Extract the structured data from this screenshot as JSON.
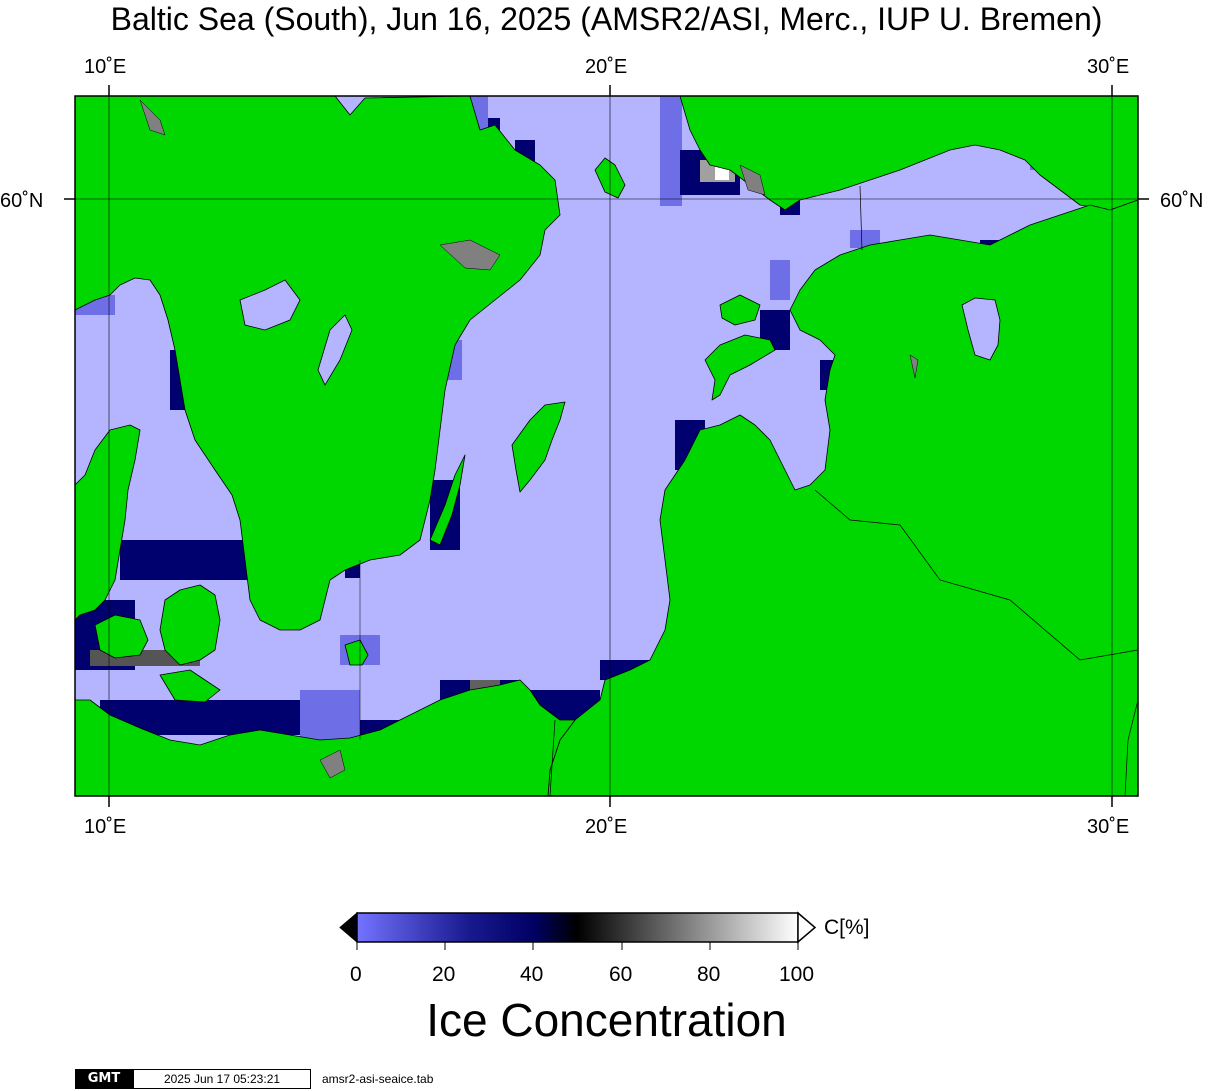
{
  "title": "Baltic Sea (South), Jun 16, 2025 (AMSR2/ASI, Merc., IUP U. Bremen)",
  "lon_labels": [
    "10˚E",
    "20˚E",
    "30˚E"
  ],
  "lat_labels": [
    "60˚N"
  ],
  "colorbar": {
    "unit": "C[%]",
    "ticks": [
      "0",
      "20",
      "40",
      "60",
      "80",
      "100"
    ],
    "title": "Ice Concentration",
    "stops": [
      "#7373ff",
      "#000064",
      "#000000",
      "#ffffff"
    ]
  },
  "colors": {
    "land": "#00d700",
    "water": "#b4b4ff",
    "coast": "#000000",
    "low_conc": "#6e6ee6",
    "mid_conc": "#00006e",
    "grey_pixel": "#808080"
  },
  "footer": {
    "logo": "GMT",
    "timestamp": "2025 Jun 17 05:23:21",
    "command": "amsr2-asi-seaice.tab"
  }
}
